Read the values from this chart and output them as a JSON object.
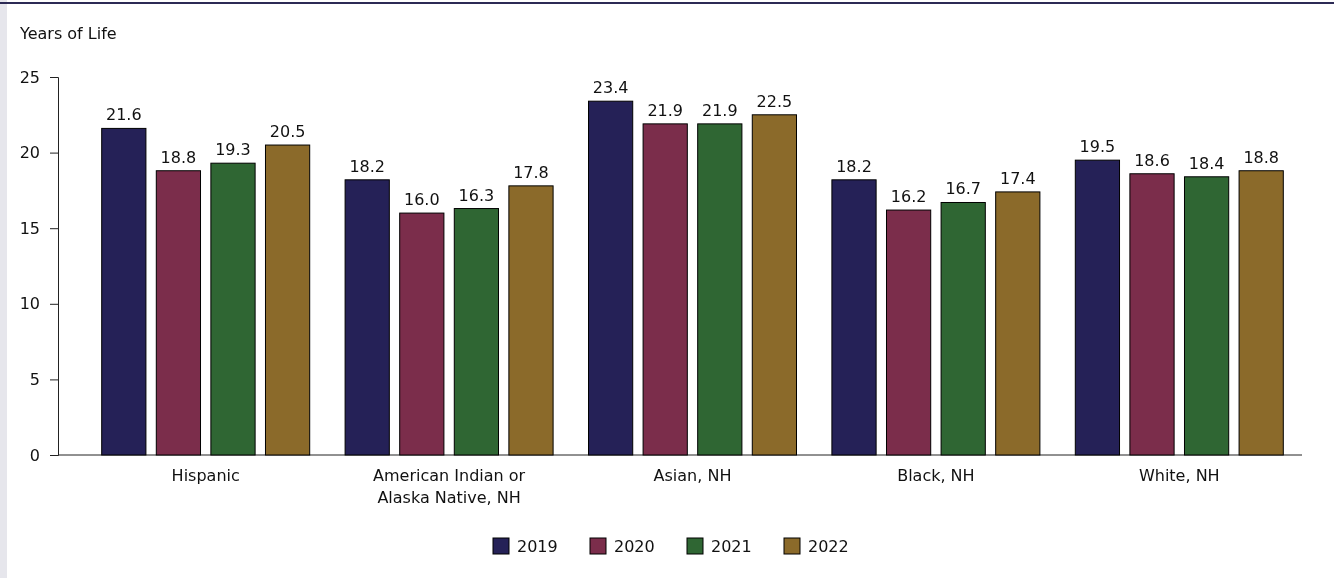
{
  "chart_data": {
    "type": "bar",
    "ylabel": "Years of Life",
    "categories": [
      "Hispanic",
      "American Indian or Alaska Native, NH",
      "Asian, NH",
      "Black, NH",
      "White, NH"
    ],
    "series": [
      {
        "name": "2019",
        "color": "#252157",
        "values": [
          21.6,
          18.2,
          23.4,
          18.2,
          19.5
        ]
      },
      {
        "name": "2020",
        "color": "#7b2d4b",
        "values": [
          18.8,
          16.0,
          21.9,
          16.2,
          18.6
        ]
      },
      {
        "name": "2021",
        "color": "#2f6633",
        "values": [
          19.3,
          16.3,
          21.9,
          16.7,
          18.4
        ]
      },
      {
        "name": "2022",
        "color": "#8b6a2a",
        "values": [
          20.5,
          17.8,
          22.5,
          17.4,
          18.8
        ]
      }
    ],
    "value_labels": [
      [
        "21.6",
        "18.2",
        "23.4",
        "18.2",
        "19.5"
      ],
      [
        "18.8",
        "16.0",
        "21.9",
        "16.2",
        "18.6"
      ],
      [
        "19.3",
        "16.3",
        "21.9",
        "16.7",
        "18.4"
      ],
      [
        "20.5",
        "17.8",
        "22.5",
        "17.4",
        "18.8"
      ]
    ],
    "ylim": [
      0,
      25
    ],
    "yticks": [
      0,
      5,
      10,
      15,
      20,
      25
    ],
    "grid": false,
    "legend": "bottom"
  }
}
